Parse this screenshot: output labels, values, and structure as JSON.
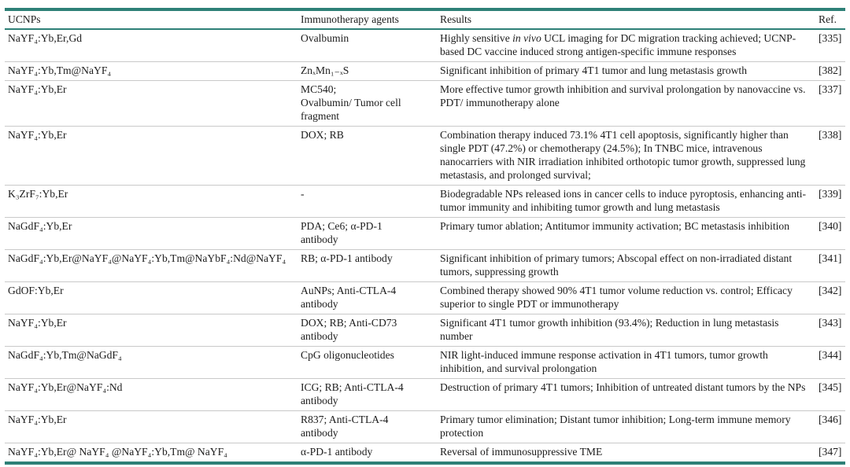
{
  "theme": {
    "accent_teal": "#2E8077",
    "separator_gray": "#C9C9C9",
    "text_color": "#1C1C1C"
  },
  "table": {
    "columns": [
      {
        "label": "UCNPs"
      },
      {
        "label": "Immunotherapy agents"
      },
      {
        "label": "Results"
      },
      {
        "label": "Ref."
      }
    ],
    "rows": [
      {
        "ucnp": "NaYF₄:Yb,Er,Gd",
        "agents": "Ovalbumin",
        "results": [
          {
            "t": "Highly sensitive "
          },
          {
            "t": "in vivo",
            "i": true
          },
          {
            "t": " UCL imaging for DC migration tracking achieved; UCNP-based DC vaccine induced strong antigen-specific immune responses"
          }
        ],
        "ref": "[335]"
      },
      {
        "ucnp": "NaYF₄:Yb,Tm@NaYF₄",
        "agents": "ZnₓMn₁₋ₓS",
        "results": [
          {
            "t": "Significant inhibition of primary 4T1 tumor and lung metastasis growth"
          }
        ],
        "ref": "[382]"
      },
      {
        "ucnp": "NaYF₄:Yb,Er",
        "agents": "MC540;\nOvalbumin/ Tumor cell\nfragment",
        "results": [
          {
            "t": "More effective tumor growth inhibition and survival prolongation by nanovaccine vs. PDT/ immunotherapy alone"
          }
        ],
        "ref": "[337]"
      },
      {
        "ucnp": "NaYF₄:Yb,Er",
        "agents": "DOX; RB",
        "results": [
          {
            "t": "Combination therapy induced 73.1% 4T1 cell apoptosis, significantly higher than single PDT (47.2%) or chemotherapy (24.5%); In TNBC mice, intravenous nanocarriers with NIR irradiation inhibited orthotopic tumor growth, suppressed lung metastasis, and prolonged survival;"
          }
        ],
        "ref": "[338]"
      },
      {
        "ucnp": "K₃ZrF₇:Yb,Er",
        "agents": "-",
        "results": [
          {
            "t": "Biodegradable NPs released ions in cancer cells to induce pyroptosis, enhancing anti-tumor immunity and inhibiting tumor growth and lung metastasis"
          }
        ],
        "ref": "[339]"
      },
      {
        "ucnp": "NaGdF₄:Yb,Er",
        "agents": "PDA; Ce6; α-PD-1\nantibody",
        "results": [
          {
            "t": "Primary tumor ablation; Antitumor immunity activation; BC metastasis inhibition"
          }
        ],
        "ref": "[340]"
      },
      {
        "ucnp": "NaGdF₄:Yb,Er@NaYF₄@NaYF₄:Yb,Tm@NaYbF₄:Nd@NaYF₄",
        "agents": "RB; α-PD-1 antibody",
        "results": [
          {
            "t": "Significant inhibition of primary tumors; Abscopal effect on non-irradiated distant tumors, suppressing growth"
          }
        ],
        "ref": "[341]"
      },
      {
        "ucnp": "GdOF:Yb,Er",
        "agents": "AuNPs; Anti-CTLA-4\nantibody",
        "results": [
          {
            "t": "Combined therapy showed 90% 4T1 tumor volume reduction vs. control; Efficacy superior to single PDT or immunotherapy"
          }
        ],
        "ref": "[342]"
      },
      {
        "ucnp": "NaYF₄:Yb,Er",
        "agents": "DOX; RB; Anti-CD73\nantibody",
        "results": [
          {
            "t": "Significant 4T1 tumor growth inhibition (93.4%); Reduction in lung metastasis number"
          }
        ],
        "ref": "[343]"
      },
      {
        "ucnp": "NaGdF₄:Yb,Tm@NaGdF₄",
        "agents": "CpG oligonucleotides",
        "results": [
          {
            "t": "NIR light-induced immune response activation in 4T1 tumors, tumor growth inhibition, and survival prolongation"
          }
        ],
        "ref": "[344]"
      },
      {
        "ucnp": "NaYF₄:Yb,Er@NaYF₄:Nd",
        "agents": "ICG; RB; Anti-CTLA-4\nantibody",
        "results": [
          {
            "t": "Destruction of primary 4T1 tumors; Inhibition of untreated distant tumors by the NPs"
          }
        ],
        "ref": "[345]"
      },
      {
        "ucnp": "NaYF₄:Yb,Er",
        "agents": "R837; Anti-CTLA-4\nantibody",
        "results": [
          {
            "t": "Primary tumor elimination; Distant tumor inhibition; Long-term immune memory protection"
          }
        ],
        "ref": "[346]"
      },
      {
        "ucnp": "NaYF₄:Yb,Er@ NaYF₄ @NaYF₄:Yb,Tm@ NaYF₄",
        "agents": "α-PD-1 antibody",
        "results": [
          {
            "t": "Reversal of immunosuppressive TME"
          }
        ],
        "ref": "[347]"
      }
    ]
  }
}
